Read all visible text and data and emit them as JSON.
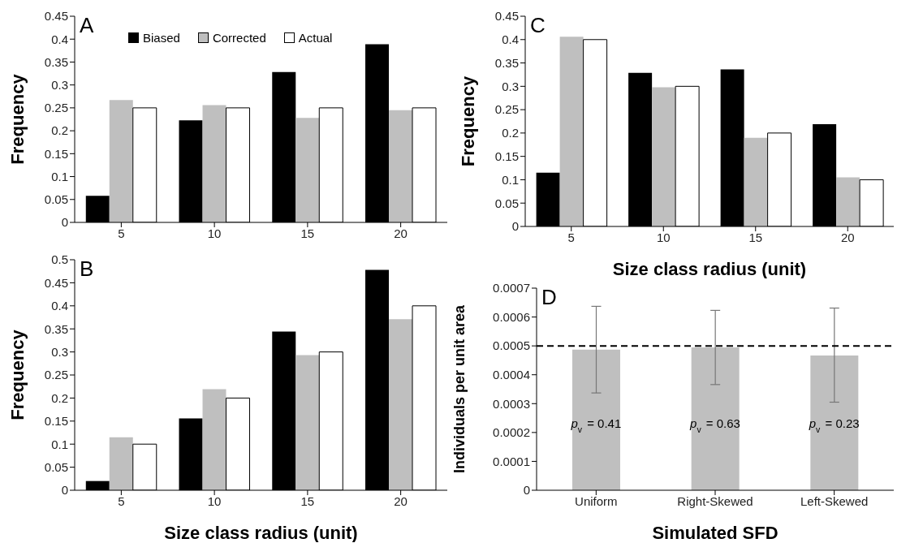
{
  "chart_data": [
    {
      "type": "bar",
      "title": "A",
      "ylabel": "Frequency",
      "categories": [
        "5",
        "10",
        "15",
        "20"
      ],
      "series": [
        {
          "name": "Biased",
          "color": "#000000",
          "values": [
            0.058,
            0.223,
            0.328,
            0.389
          ]
        },
        {
          "name": "Corrected",
          "color": "#bfbfbf",
          "values": [
            0.267,
            0.256,
            0.228,
            0.245
          ]
        },
        {
          "name": "Actual",
          "color": "#ffffff",
          "values": [
            0.25,
            0.25,
            0.25,
            0.25
          ]
        }
      ],
      "ylim": [
        0,
        0.45
      ],
      "yticks": [
        0,
        0.05,
        0.1,
        0.15,
        0.2,
        0.25,
        0.3,
        0.35,
        0.4,
        0.45
      ],
      "legend": "top"
    },
    {
      "type": "bar",
      "title": "B",
      "ylabel": "Frequency",
      "xlabel": "Size class radius (unit)",
      "categories": [
        "5",
        "10",
        "15",
        "20"
      ],
      "series": [
        {
          "color": "#000000",
          "values": [
            0.02,
            0.156,
            0.344,
            0.478
          ]
        },
        {
          "color": "#bfbfbf",
          "values": [
            0.115,
            0.219,
            0.293,
            0.371
          ]
        },
        {
          "color": "#ffffff",
          "values": [
            0.1,
            0.2,
            0.3,
            0.4
          ]
        }
      ],
      "ylim": [
        0,
        0.5
      ],
      "yticks": [
        0,
        0.05,
        0.1,
        0.15,
        0.2,
        0.25,
        0.3,
        0.35,
        0.4,
        0.45,
        0.5
      ]
    },
    {
      "type": "bar",
      "title": "C",
      "ylabel": "Frequency",
      "xlabel": "Size class radius (unit)",
      "categories": [
        "5",
        "10",
        "15",
        "20"
      ],
      "series": [
        {
          "color": "#000000",
          "values": [
            0.115,
            0.329,
            0.336,
            0.219
          ]
        },
        {
          "color": "#bfbfbf",
          "values": [
            0.406,
            0.298,
            0.19,
            0.105
          ]
        },
        {
          "color": "#ffffff",
          "values": [
            0.4,
            0.3,
            0.2,
            0.1
          ]
        }
      ],
      "ylim": [
        0,
        0.45
      ],
      "yticks": [
        0,
        0.05,
        0.1,
        0.15,
        0.2,
        0.25,
        0.3,
        0.35,
        0.4,
        0.45
      ]
    },
    {
      "type": "bar",
      "title": "D",
      "ylabel": "Individuals per unit area",
      "xlabel": "Simulated SFD",
      "categories": [
        "Uniform",
        "Right-Skewed",
        "Left-Skewed"
      ],
      "series": [
        {
          "color": "#bfbfbf",
          "values": [
            0.000487,
            0.000495,
            0.000467
          ],
          "errors": [
            [
              0.000337,
              0.000637
            ],
            [
              0.000366,
              0.000623
            ],
            [
              0.000305,
              0.000631
            ]
          ]
        }
      ],
      "ylim": [
        0,
        0.0007
      ],
      "yticks": [
        0,
        0.0001,
        0.0002,
        0.0003,
        0.0004,
        0.0005,
        0.0006,
        0.0007
      ],
      "ref_lines": [
        {
          "axis": "y",
          "value": 0.0005,
          "color": "#000000",
          "line_style": "dashed"
        }
      ],
      "annotations": [
        "p$_{v}$ = 0.41",
        "p$_{v}$ = 0.63",
        "p$_{v}$ = 0.23"
      ]
    }
  ]
}
